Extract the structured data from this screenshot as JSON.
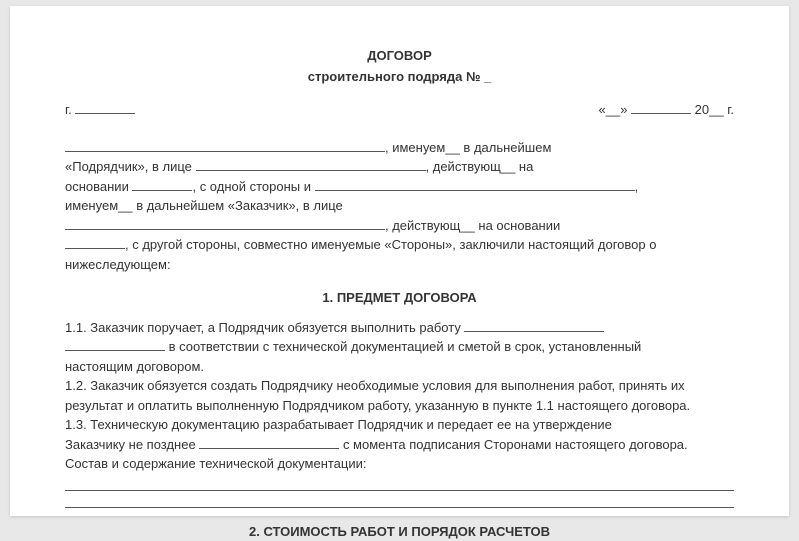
{
  "header": {
    "title_main": "ДОГОВОР",
    "title_sub": "строительного подряда № _"
  },
  "date_row": {
    "city_prefix": "г.",
    "quote_open": "«__»",
    "year_prefix": "20__",
    "year_suffix": "г."
  },
  "preamble": {
    "line1_after_blank": ", именуем__ в дальнейшем",
    "line2_start": "«Подрядчик», в лице",
    "line2_end": ", действующ__ на",
    "line3_start": "основании",
    "line3_mid": ", с одной стороны и",
    "line3_end": ",",
    "line4": "именуем__ в дальнейшем «Заказчик», в лице",
    "line5_end": ", действующ__ на основании",
    "line6": ", с другой стороны, совместно именуемые «Стороны», заключили настоящий договор о",
    "line7": "нижеследующем:"
  },
  "section1": {
    "title": "1. ПРЕДМЕТ ДОГОВОРА",
    "p11_start": "1.1. Заказчик поручает, а Подрядчик обязуется выполнить работу",
    "p11_line2": " в соответствии с технической документацией и сметой в срок, установленный",
    "p11_line3": "настоящим договором.",
    "p12": "1.2. Заказчик обязуется создать Подрядчику необходимые условия для выполнения работ, принять их результат и оплатить выполненную Подрядчиком работу, указанную в пункте 1.1 настоящего договора.",
    "p13_start": "1.3. Техническую документацию разрабатывает Подрядчик и передает ее на утверждение",
    "p13_line2_start": "Заказчику не позднее",
    "p13_line2_end": " с момента подписания Сторонами настоящего договора.",
    "p13_line3": "Состав и содержание технической документации:"
  },
  "section2": {
    "title": "2. СТОИМОСТЬ РАБОТ И ПОРЯДОК РАСЧЕТОВ"
  },
  "styling": {
    "background_color": "#e8e8e8",
    "page_color": "#ffffff",
    "text_color": "#333333",
    "font_family": "Arial",
    "font_size_pt": 10,
    "title_weight": "bold",
    "line_height": 1.5,
    "underline_color": "#555555"
  }
}
